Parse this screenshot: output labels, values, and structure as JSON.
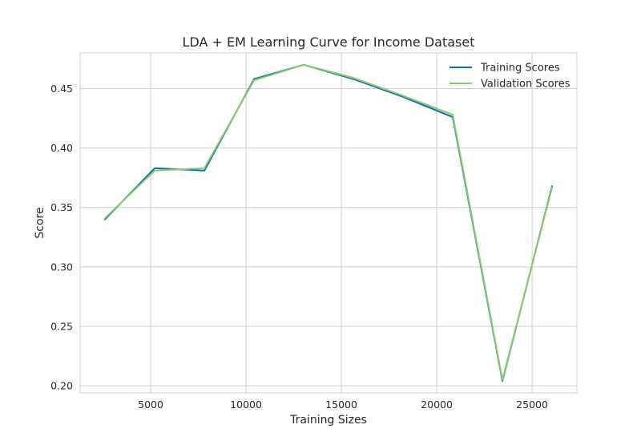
{
  "chart_data": {
    "type": "line",
    "title": "LDA + EM Learning Curve for Income Dataset",
    "xlabel": "Training Sizes",
    "ylabel": "Score",
    "x": [
      2605,
      5210,
      7815,
      10420,
      13025,
      15630,
      18235,
      20840,
      23445,
      26050
    ],
    "series": [
      {
        "name": "Training Scores",
        "color": "#0072B2",
        "values": [
          0.34,
          0.383,
          0.381,
          0.458,
          0.47,
          0.458,
          0.443,
          0.426,
          0.204,
          0.368
        ]
      },
      {
        "name": "Validation Scores",
        "color": "#8CC867",
        "values": [
          0.341,
          0.381,
          0.383,
          0.457,
          0.47,
          0.459,
          0.444,
          0.428,
          0.205,
          0.367
        ]
      }
    ],
    "xlim": [
      1300,
      27350
    ],
    "ylim": [
      0.194,
      0.48
    ],
    "xticks": [
      5000,
      10000,
      15000,
      20000,
      25000
    ],
    "xtick_labels": [
      "5000",
      "10000",
      "15000",
      "20000",
      "25000"
    ],
    "yticks": [
      0.2,
      0.25,
      0.3,
      0.35,
      0.4,
      0.45
    ],
    "ytick_labels": [
      "0.20",
      "0.25",
      "0.30",
      "0.35",
      "0.40",
      "0.45"
    ],
    "grid": true,
    "legend_position": "top-right"
  }
}
